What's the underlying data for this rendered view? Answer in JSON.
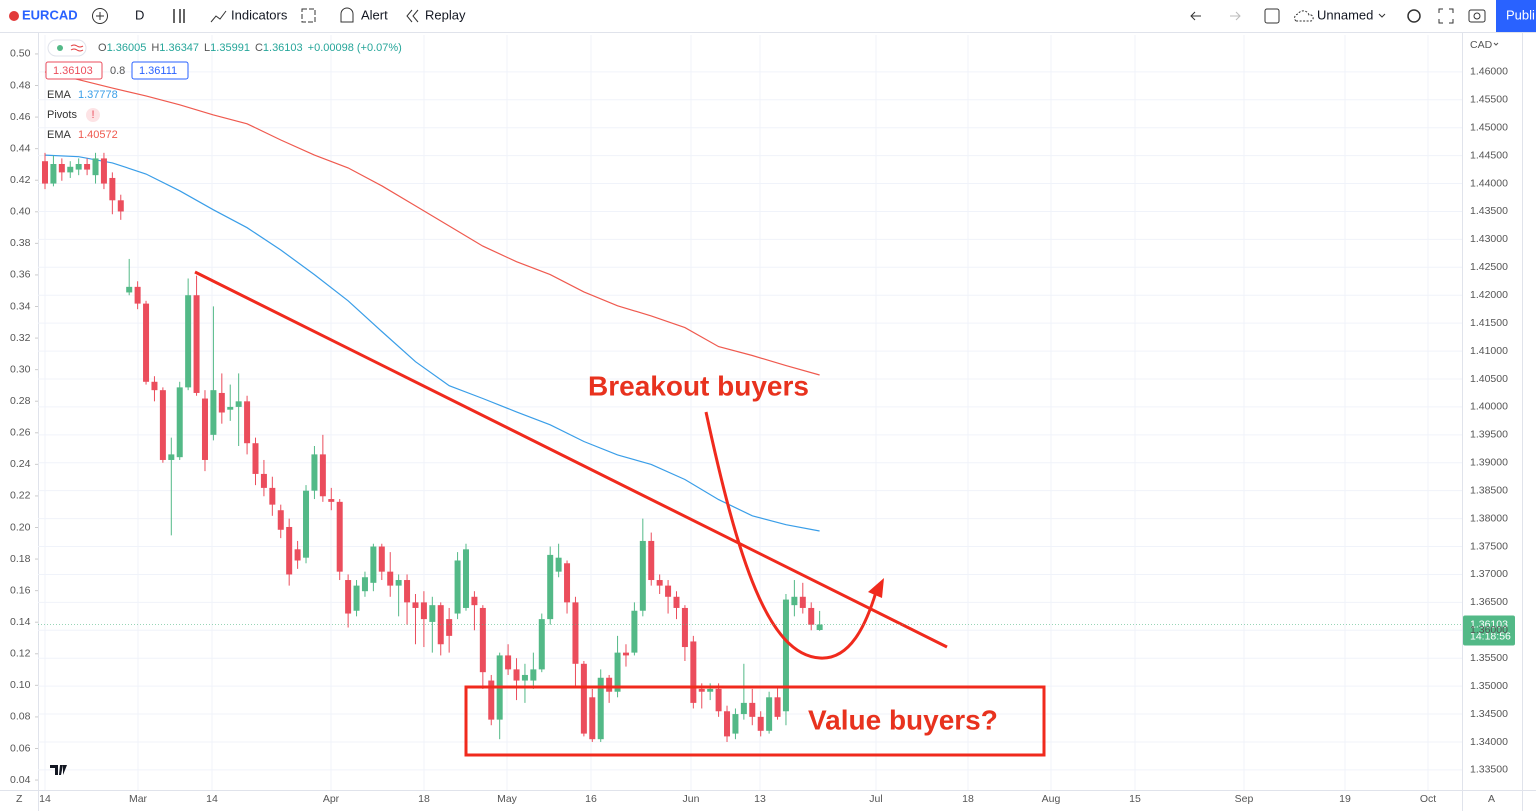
{
  "toolbar": {
    "symbol": "EURCAD",
    "interval": "D",
    "indicators": "Indicators",
    "alert": "Alert",
    "replay": "Replay",
    "layout_name": "Unnamed",
    "publish": "Publi"
  },
  "legend": {
    "ohlc": [
      {
        "key": "O",
        "value": "1.36005"
      },
      {
        "key": "H",
        "value": "1.36347"
      },
      {
        "key": "L",
        "value": "1.35991"
      },
      {
        "key": "C",
        "value": "1.36103"
      }
    ],
    "change": "+0.00098 (+0.07%)",
    "bid": "1.36103",
    "spread": "0.8",
    "ask": "1.36111",
    "indicators": [
      {
        "name": "EMA",
        "value": "1.37778"
      },
      {
        "name": "Pivots",
        "value": "!"
      },
      {
        "name": "EMA",
        "value": "1.40572"
      }
    ]
  },
  "price_tag": {
    "price": "1.36103",
    "countdown": "14:18:56"
  },
  "axis_corner_left": "Z",
  "axis_corner_right": "A",
  "currency": "CAD",
  "chart_data": {
    "type": "candlestick",
    "up_color": "#53b987",
    "down_color": "#eb4d5c",
    "candles": [
      [
        1.444,
        1.4455,
        1.439,
        1.44
      ],
      [
        1.44,
        1.445,
        1.4395,
        1.4435
      ],
      [
        1.4435,
        1.4445,
        1.4405,
        1.442
      ],
      [
        1.442,
        1.444,
        1.441,
        1.443
      ],
      [
        1.4425,
        1.4445,
        1.4415,
        1.4435
      ],
      [
        1.4435,
        1.4445,
        1.4415,
        1.4425
      ],
      [
        1.4415,
        1.4455,
        1.44,
        1.4445
      ],
      [
        1.4445,
        1.4455,
        1.439,
        1.44
      ],
      [
        1.441,
        1.442,
        1.4345,
        1.437
      ],
      [
        1.437,
        1.438,
        1.4335,
        1.435
      ],
      [
        1.4205,
        1.4265,
        1.42,
        1.4215
      ],
      [
        1.4215,
        1.4225,
        1.4175,
        1.4185
      ],
      [
        1.4185,
        1.419,
        1.404,
        1.4045
      ],
      [
        1.4045,
        1.4055,
        1.401,
        1.403
      ],
      [
        1.403,
        1.4035,
        1.39,
        1.3905
      ],
      [
        1.3905,
        1.3945,
        1.377,
        1.3915
      ],
      [
        1.391,
        1.4045,
        1.3905,
        1.4035
      ],
      [
        1.4035,
        1.423,
        1.403,
        1.42
      ],
      [
        1.42,
        1.4235,
        1.402,
        1.4025
      ],
      [
        1.4015,
        1.403,
        1.3885,
        1.3905
      ],
      [
        1.395,
        1.418,
        1.394,
        1.403
      ],
      [
        1.4025,
        1.406,
        1.397,
        1.399
      ],
      [
        1.3995,
        1.404,
        1.3975,
        1.4
      ],
      [
        1.4,
        1.406,
        1.393,
        1.401
      ],
      [
        1.401,
        1.402,
        1.3915,
        1.3935
      ],
      [
        1.3935,
        1.3945,
        1.386,
        1.388
      ],
      [
        1.388,
        1.3905,
        1.384,
        1.3855
      ],
      [
        1.3855,
        1.3875,
        1.3805,
        1.3825
      ],
      [
        1.3815,
        1.3825,
        1.3765,
        1.378
      ],
      [
        1.3785,
        1.38,
        1.368,
        1.37
      ],
      [
        1.3745,
        1.376,
        1.371,
        1.3725
      ],
      [
        1.373,
        1.386,
        1.372,
        1.385
      ],
      [
        1.385,
        1.393,
        1.3835,
        1.3915
      ],
      [
        1.3915,
        1.395,
        1.383,
        1.384
      ],
      [
        1.3835,
        1.3855,
        1.3815,
        1.383
      ],
      [
        1.383,
        1.3835,
        1.369,
        1.3705
      ],
      [
        1.369,
        1.37,
        1.3605,
        1.363
      ],
      [
        1.3635,
        1.369,
        1.3625,
        1.368
      ],
      [
        1.367,
        1.3705,
        1.366,
        1.3695
      ],
      [
        1.3685,
        1.3755,
        1.367,
        1.375
      ],
      [
        1.375,
        1.3755,
        1.369,
        1.3705
      ],
      [
        1.3705,
        1.374,
        1.366,
        1.368
      ],
      [
        1.368,
        1.37,
        1.3625,
        1.369
      ],
      [
        1.369,
        1.37,
        1.361,
        1.365
      ],
      [
        1.365,
        1.3665,
        1.3575,
        1.364
      ],
      [
        1.365,
        1.367,
        1.357,
        1.362
      ],
      [
        1.3615,
        1.366,
        1.356,
        1.3645
      ],
      [
        1.3645,
        1.365,
        1.3555,
        1.3575
      ],
      [
        1.362,
        1.364,
        1.356,
        1.359
      ],
      [
        1.363,
        1.374,
        1.362,
        1.3725
      ],
      [
        1.364,
        1.3755,
        1.3635,
        1.3745
      ],
      [
        1.366,
        1.367,
        1.36,
        1.3645
      ],
      [
        1.364,
        1.3645,
        1.3495,
        1.3525
      ],
      [
        1.351,
        1.352,
        1.343,
        1.344
      ],
      [
        1.344,
        1.356,
        1.3405,
        1.3555
      ],
      [
        1.3555,
        1.3575,
        1.352,
        1.353
      ],
      [
        1.353,
        1.355,
        1.3475,
        1.351
      ],
      [
        1.351,
        1.354,
        1.347,
        1.352
      ],
      [
        1.351,
        1.356,
        1.3495,
        1.353
      ],
      [
        1.353,
        1.363,
        1.3525,
        1.362
      ],
      [
        1.362,
        1.375,
        1.361,
        1.3735
      ],
      [
        1.3705,
        1.3755,
        1.3695,
        1.373
      ],
      [
        1.372,
        1.3725,
        1.363,
        1.365
      ],
      [
        1.365,
        1.366,
        1.35,
        1.354
      ],
      [
        1.354,
        1.3545,
        1.341,
        1.3415
      ],
      [
        1.348,
        1.3495,
        1.34,
        1.3405
      ],
      [
        1.3405,
        1.353,
        1.34,
        1.3515
      ],
      [
        1.3515,
        1.352,
        1.347,
        1.349
      ],
      [
        1.349,
        1.359,
        1.348,
        1.356
      ],
      [
        1.356,
        1.3575,
        1.3535,
        1.3555
      ],
      [
        1.356,
        1.365,
        1.3555,
        1.3635
      ],
      [
        1.3635,
        1.38,
        1.3625,
        1.376
      ],
      [
        1.376,
        1.3775,
        1.368,
        1.369
      ],
      [
        1.369,
        1.37,
        1.3665,
        1.368
      ],
      [
        1.368,
        1.369,
        1.363,
        1.366
      ],
      [
        1.366,
        1.367,
        1.362,
        1.364
      ],
      [
        1.364,
        1.3645,
        1.3545,
        1.357
      ],
      [
        1.358,
        1.359,
        1.346,
        1.347
      ],
      [
        1.3495,
        1.3505,
        1.346,
        1.349
      ],
      [
        1.349,
        1.3505,
        1.3475,
        1.3495
      ],
      [
        1.3495,
        1.3505,
        1.3445,
        1.3455
      ],
      [
        1.3455,
        1.3465,
        1.34,
        1.341
      ],
      [
        1.3415,
        1.346,
        1.3405,
        1.345
      ],
      [
        1.345,
        1.354,
        1.344,
        1.347
      ],
      [
        1.347,
        1.3495,
        1.343,
        1.3445
      ],
      [
        1.3445,
        1.3455,
        1.341,
        1.342
      ],
      [
        1.342,
        1.349,
        1.3415,
        1.348
      ],
      [
        1.348,
        1.35,
        1.344,
        1.3445
      ],
      [
        1.3455,
        1.3665,
        1.343,
        1.3655
      ],
      [
        1.3645,
        1.369,
        1.3625,
        1.366
      ],
      [
        1.366,
        1.3685,
        1.363,
        1.364
      ],
      [
        1.364,
        1.365,
        1.36,
        1.361
      ],
      [
        1.36005,
        1.36347,
        1.35991,
        1.36103
      ]
    ],
    "series": [
      {
        "name": "EMA",
        "color": "#3a9ee8",
        "values": [
          1.4451,
          1.4448,
          1.4437,
          1.4417,
          1.4387,
          1.4353,
          1.4321,
          1.4281,
          1.4237,
          1.419,
          1.4135,
          1.4081,
          1.4038,
          1.4015,
          1.3991,
          1.3968,
          1.3938,
          1.3914,
          1.3897,
          1.387,
          1.3834,
          1.3805,
          1.3789,
          1.37778
        ]
      },
      {
        "name": "EMA",
        "color": "#ef5a4f",
        "values": [
          1.46,
          1.4586,
          1.4571,
          1.4557,
          1.4541,
          1.4523,
          1.4507,
          1.4478,
          1.4451,
          1.4428,
          1.4396,
          1.436,
          1.4324,
          1.4288,
          1.426,
          1.4237,
          1.4206,
          1.4181,
          1.4163,
          1.4142,
          1.4108,
          1.4092,
          1.4074,
          1.40572
        ]
      }
    ],
    "x_labels": [
      "14",
      "Mar",
      "14",
      "Apr",
      "18",
      "May",
      "16",
      "Jun",
      "13",
      "Jul",
      "18",
      "Aug",
      "15",
      "Sep",
      "19",
      "Oct"
    ],
    "ylim": [
      1.3314,
      1.4666
    ],
    "yticks": [
      {
        "value": 1.335,
        "label": "1.33500"
      },
      {
        "value": 1.34,
        "label": "1.34000"
      },
      {
        "value": 1.345,
        "label": "1.34500"
      },
      {
        "value": 1.35,
        "label": "1.35000"
      },
      {
        "value": 1.355,
        "label": "1.35500"
      },
      {
        "value": 1.36,
        "label": "1.36000"
      },
      {
        "value": 1.365,
        "label": "1.36500"
      },
      {
        "value": 1.37,
        "label": "1.37000"
      },
      {
        "value": 1.375,
        "label": "1.37500"
      },
      {
        "value": 1.38,
        "label": "1.38000"
      },
      {
        "value": 1.385,
        "label": "1.38500"
      },
      {
        "value": 1.39,
        "label": "1.39000"
      },
      {
        "value": 1.395,
        "label": "1.39500"
      },
      {
        "value": 1.4,
        "label": "1.40000"
      },
      {
        "value": 1.405,
        "label": "1.40500"
      },
      {
        "value": 1.41,
        "label": "1.41000"
      },
      {
        "value": 1.415,
        "label": "1.41500"
      },
      {
        "value": 1.42,
        "label": "1.42000"
      },
      {
        "value": 1.425,
        "label": "1.42500"
      },
      {
        "value": 1.43,
        "label": "1.43000"
      },
      {
        "value": 1.435,
        "label": "1.43500"
      },
      {
        "value": 1.44,
        "label": "1.44000"
      },
      {
        "value": 1.445,
        "label": "1.44500"
      },
      {
        "value": 1.45,
        "label": "1.45000"
      },
      {
        "value": 1.455,
        "label": "1.45500"
      },
      {
        "value": 1.46,
        "label": "1.46000"
      }
    ],
    "y2lim": [
      0.0337,
      0.512
    ],
    "y2ticks": [
      {
        "value": 0.04,
        "label": "0.04"
      },
      {
        "value": 0.06,
        "label": "0.06"
      },
      {
        "value": 0.08,
        "label": "0.08"
      },
      {
        "value": 0.1,
        "label": "0.10"
      },
      {
        "value": 0.12,
        "label": "0.12"
      },
      {
        "value": 0.14,
        "label": "0.14"
      },
      {
        "value": 0.16,
        "label": "0.16"
      },
      {
        "value": 0.18,
        "label": "0.18"
      },
      {
        "value": 0.2,
        "label": "0.20"
      },
      {
        "value": 0.22,
        "label": "0.22"
      },
      {
        "value": 0.24,
        "label": "0.24"
      },
      {
        "value": 0.26,
        "label": "0.26"
      },
      {
        "value": 0.28,
        "label": "0.28"
      },
      {
        "value": 0.3,
        "label": "0.30"
      },
      {
        "value": 0.32,
        "label": "0.32"
      },
      {
        "value": 0.34,
        "label": "0.34"
      },
      {
        "value": 0.36,
        "label": "0.36"
      },
      {
        "value": 0.38,
        "label": "0.38"
      },
      {
        "value": 0.4,
        "label": "0.40"
      },
      {
        "value": 0.42,
        "label": "0.42"
      },
      {
        "value": 0.44,
        "label": "0.44"
      },
      {
        "value": 0.46,
        "label": "0.46"
      },
      {
        "value": 0.48,
        "label": "0.48"
      },
      {
        "value": 0.5,
        "label": "0.50"
      }
    ],
    "grid": true,
    "annotations": [
      "Breakout buyers",
      "Value buyers?"
    ]
  }
}
